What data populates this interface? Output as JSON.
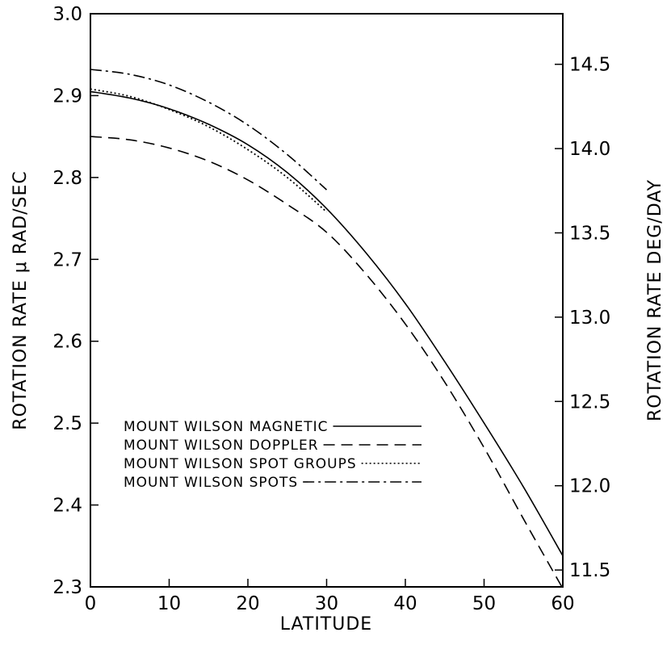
{
  "chart_data": {
    "type": "line",
    "xlabel": "LATITUDE",
    "ylabel": "ROTATION RATE μ RAD/SEC",
    "ylabel_right": "ROTATION RATE DEG/DAY",
    "xlim": [
      0,
      60
    ],
    "ylim": [
      2.3,
      3.0
    ],
    "ylim_right": [
      11.4,
      14.8
    ],
    "x_ticks": [
      "0",
      "10",
      "20",
      "30",
      "40",
      "50",
      "60"
    ],
    "y_ticks": [
      "2.3",
      "2.4",
      "2.5",
      "2.6",
      "2.7",
      "2.8",
      "2.9",
      "3.0"
    ],
    "y_right_ticks": [
      "11.5",
      "12.0",
      "12.5",
      "13.0",
      "13.5",
      "14.0",
      "14.5"
    ],
    "grid": false,
    "legend_position": "lower-left",
    "series": [
      {
        "name": "MOUNT WILSON MAGNETIC",
        "style": "solid",
        "x": [
          0,
          5,
          10,
          15,
          20,
          25,
          30,
          35,
          40,
          45,
          50,
          55,
          60
        ],
        "y": [
          2.905,
          2.897,
          2.884,
          2.865,
          2.84,
          2.806,
          2.762,
          2.708,
          2.646,
          2.575,
          2.5,
          2.422,
          2.338
        ]
      },
      {
        "name": "MOUNT WILSON DOPPLER",
        "style": "dashed",
        "x": [
          0,
          5,
          10,
          15,
          20,
          25,
          30,
          35,
          40,
          45,
          50,
          55,
          60
        ],
        "y": [
          2.85,
          2.846,
          2.836,
          2.82,
          2.797,
          2.767,
          2.733,
          2.682,
          2.621,
          2.55,
          2.47,
          2.383,
          2.298
        ]
      },
      {
        "name": "MOUNT WILSON SPOT GROUPS",
        "style": "dotted",
        "x": [
          0,
          5,
          10,
          15,
          20,
          25,
          30
        ],
        "y": [
          2.908,
          2.899,
          2.883,
          2.862,
          2.834,
          2.8,
          2.758
        ]
      },
      {
        "name": "MOUNT WILSON SPOTS",
        "style": "dashdot",
        "x": [
          0,
          5,
          10,
          15,
          20,
          25,
          30
        ],
        "y": [
          2.932,
          2.926,
          2.913,
          2.892,
          2.864,
          2.828,
          2.785
        ]
      }
    ]
  }
}
